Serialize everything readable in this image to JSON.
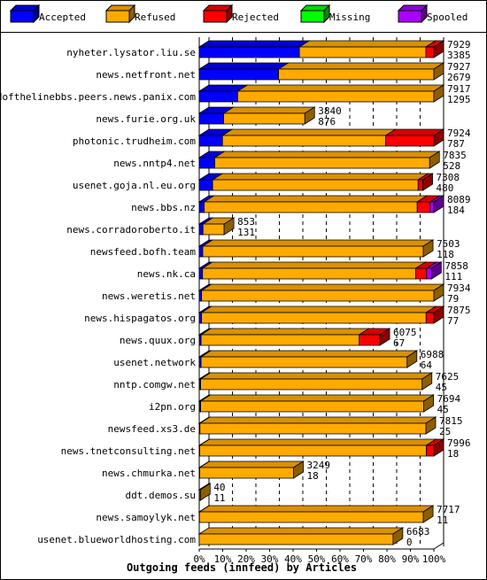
{
  "chart_data": {
    "type": "bar",
    "orientation": "horizontal",
    "stacked": true,
    "title": "Outgoing feeds (innfeed) by Articles",
    "xlim": [
      0,
      100
    ],
    "x_ticks": [
      "0%",
      "10%",
      "20%",
      "30%",
      "40%",
      "50%",
      "60%",
      "70%",
      "80%",
      "90%",
      "100%"
    ],
    "legend_position": "top",
    "legend": [
      {
        "key": "accepted",
        "name": "Accepted",
        "color": "#0000ff"
      },
      {
        "key": "refused",
        "name": "Refused",
        "color": "#ffaa00"
      },
      {
        "key": "rejected",
        "name": "Rejected",
        "color": "#ff0000"
      },
      {
        "key": "missing",
        "name": "Missing",
        "color": "#00ff00"
      },
      {
        "key": "spooled",
        "name": "Spooled",
        "color": "#aa00ff"
      }
    ],
    "rows": [
      {
        "name": "nyheter.lysator.liu.se",
        "total": "7929",
        "accepted": "3385",
        "pct": {
          "accepted": 42.7,
          "refused": 53.9,
          "rejected": 3.4,
          "missing": 0,
          "spooled": 0
        }
      },
      {
        "name": "news.netfront.net",
        "total": "7927",
        "accepted": "2679",
        "pct": {
          "accepted": 33.8,
          "refused": 66.2,
          "rejected": 0,
          "missing": 0,
          "spooled": 0
        }
      },
      {
        "name": "endofthelinebbs.peers.news.panix.com",
        "total": "7917",
        "accepted": "1295",
        "pct": {
          "accepted": 16.4,
          "refused": 83.6,
          "rejected": 0,
          "missing": 0,
          "spooled": 0
        }
      },
      {
        "name": "news.furie.org.uk",
        "total": "3840",
        "accepted": "876",
        "pct": {
          "accepted": 10.4,
          "refused": 34.6,
          "rejected": 0,
          "missing": 0,
          "spooled": 0
        }
      },
      {
        "name": "photonic.trudheim.com",
        "total": "7924",
        "accepted": "787",
        "pct": {
          "accepted": 9.9,
          "refused": 69.6,
          "rejected": 20.5,
          "missing": 0,
          "spooled": 0
        }
      },
      {
        "name": "news.nntp4.net",
        "total": "7835",
        "accepted": "528",
        "pct": {
          "accepted": 6.6,
          "refused": 91.6,
          "rejected": 0,
          "missing": 0,
          "spooled": 0
        }
      },
      {
        "name": "usenet.goja.nl.eu.org",
        "total": "7308",
        "accepted": "480",
        "pct": {
          "accepted": 5.7,
          "refused": 87.6,
          "rejected": 2.0,
          "missing": 0,
          "spooled": 0
        }
      },
      {
        "name": "news.bbs.nz",
        "total": "8089",
        "accepted": "184",
        "pct": {
          "accepted": 2.1,
          "refused": 90.8,
          "rejected": 5.5,
          "missing": 0,
          "spooled": 1.6
        }
      },
      {
        "name": "news.corradoroberto.it",
        "total": "853",
        "accepted": "131",
        "pct": {
          "accepted": 1.6,
          "refused": 9.0,
          "rejected": 0,
          "missing": 0,
          "spooled": 0
        }
      },
      {
        "name": "newsfeed.bofh.team",
        "total": "7503",
        "accepted": "118",
        "pct": {
          "accepted": 1.5,
          "refused": 94.0,
          "rejected": 0,
          "missing": 0,
          "spooled": 0
        }
      },
      {
        "name": "news.nk.ca",
        "total": "7858",
        "accepted": "111",
        "pct": {
          "accepted": 1.4,
          "refused": 90.9,
          "rejected": 4.6,
          "missing": 0,
          "spooled": 2.1
        }
      },
      {
        "name": "news.weretis.net",
        "total": "7934",
        "accepted": "79",
        "pct": {
          "accepted": 1.0,
          "refused": 99.0,
          "rejected": 0,
          "missing": 0,
          "spooled": 0
        }
      },
      {
        "name": "news.hispagatos.org",
        "total": "7875",
        "accepted": "77",
        "pct": {
          "accepted": 1.0,
          "refused": 95.7,
          "rejected": 3.3,
          "missing": 0,
          "spooled": 0
        }
      },
      {
        "name": "news.quux.org",
        "total": "6075",
        "accepted": "67",
        "pct": {
          "accepted": 0.8,
          "refused": 67.4,
          "rejected": 8.8,
          "missing": 0,
          "spooled": 0
        }
      },
      {
        "name": "usenet.network",
        "total": "6988",
        "accepted": "64",
        "pct": {
          "accepted": 0.8,
          "refused": 87.8,
          "rejected": 0,
          "missing": 0,
          "spooled": 0
        }
      },
      {
        "name": "nntp.comgw.net",
        "total": "7625",
        "accepted": "45",
        "pct": {
          "accepted": 0.6,
          "refused": 94.4,
          "rejected": 0,
          "missing": 0,
          "spooled": 0
        }
      },
      {
        "name": "i2pn.org",
        "total": "7694",
        "accepted": "45",
        "pct": {
          "accepted": 0.6,
          "refused": 95.1,
          "rejected": 0,
          "missing": 0,
          "spooled": 0
        }
      },
      {
        "name": "newsfeed.xs3.de",
        "total": "7815",
        "accepted": "25",
        "pct": {
          "accepted": 0.3,
          "refused": 96.3,
          "rejected": 0,
          "missing": 0,
          "spooled": 0
        }
      },
      {
        "name": "news.tnetconsulting.net",
        "total": "7996",
        "accepted": "18",
        "pct": {
          "accepted": 0.2,
          "refused": 96.6,
          "rejected": 3.2,
          "missing": 0,
          "spooled": 0
        }
      },
      {
        "name": "news.chmurka.net",
        "total": "3249",
        "accepted": "18",
        "pct": {
          "accepted": 0.2,
          "refused": 40.0,
          "rejected": 0,
          "missing": 0,
          "spooled": 0
        }
      },
      {
        "name": "ddt.demos.su",
        "total": "40",
        "accepted": "11",
        "pct": {
          "accepted": 0.1,
          "refused": 0.4,
          "rejected": 0,
          "missing": 0,
          "spooled": 0
        }
      },
      {
        "name": "news.samoylyk.net",
        "total": "7717",
        "accepted": "11",
        "pct": {
          "accepted": 0.1,
          "refused": 95.4,
          "rejected": 0,
          "missing": 0,
          "spooled": 0
        }
      },
      {
        "name": "usenet.blueworldhosting.com",
        "total": "6683",
        "accepted": "0",
        "pct": {
          "accepted": 0,
          "refused": 82.6,
          "rejected": 0,
          "missing": 0,
          "spooled": 0
        }
      }
    ]
  }
}
